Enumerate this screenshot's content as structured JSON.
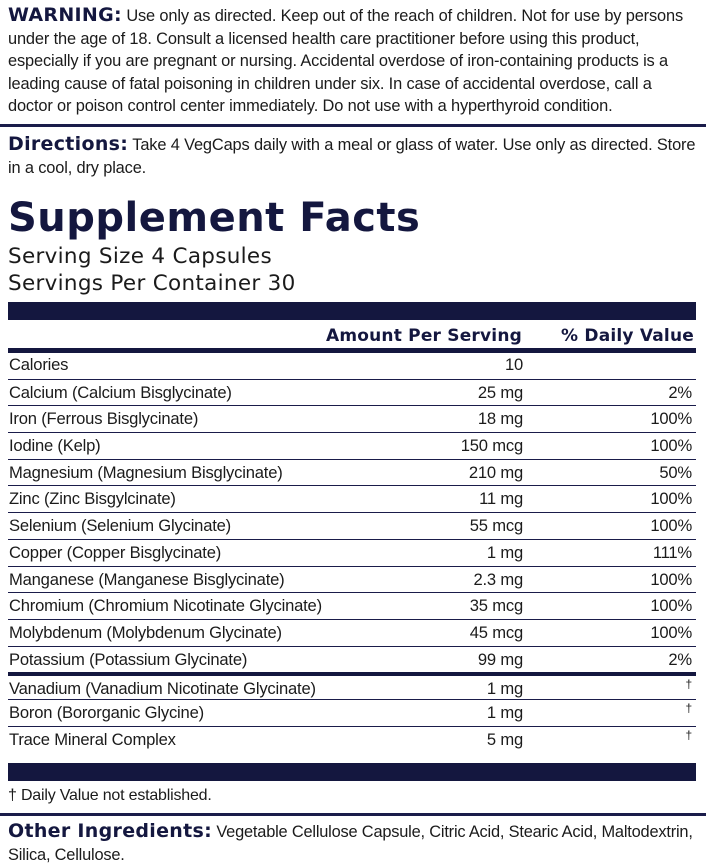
{
  "warning": {
    "label": "WARNING:",
    "text": "Use only as directed. Keep out of the reach of children. Not for use by persons under the age of 18. Consult a licensed health care practitioner before using this product, especially if you are pregnant or nursing. Accidental overdose of iron-containing products is a leading cause of fatal poisoning in children under six. In case of accidental overdose, call a doctor or poison control center immediately. Do not use with a hyperthyroid condition."
  },
  "directions": {
    "label": "Directions:",
    "text": "Take 4 VegCaps daily with a meal or glass of water. Use only as directed. Store in a cool, dry place."
  },
  "supplement_facts": {
    "title": "Supplement Facts",
    "serving_size": "Serving Size 4 Capsules",
    "servings_per_container": "Servings Per Container 30",
    "header_amount": "Amount Per Serving",
    "header_dv": "% Daily Value",
    "rows": [
      {
        "name": "Calories",
        "amount": "10",
        "dv": ""
      },
      {
        "name": "Calcium (Calcium Bisglycinate)",
        "amount": "25 mg",
        "dv": "2%"
      },
      {
        "name": "Iron (Ferrous Bisglycinate)",
        "amount": "18 mg",
        "dv": "100%"
      },
      {
        "name": "Iodine (Kelp)",
        "amount": "150 mcg",
        "dv": "100%"
      },
      {
        "name": "Magnesium (Magnesium Bisglycinate)",
        "amount": "210 mg",
        "dv": "50%"
      },
      {
        "name": "Zinc (Zinc Bisgylcinate)",
        "amount": "11 mg",
        "dv": "100%"
      },
      {
        "name": "Selenium (Selenium Glycinate)",
        "amount": "55 mcg",
        "dv": "100%"
      },
      {
        "name": "Copper (Copper Bisglycinate)",
        "amount": "1 mg",
        "dv": "111%"
      },
      {
        "name": "Manganese (Manganese Bisglycinate)",
        "amount": "2.3 mg",
        "dv": "100%"
      },
      {
        "name": "Chromium (Chromium Nicotinate Glycinate)",
        "amount": "35 mcg",
        "dv": "100%"
      },
      {
        "name": "Molybdenum (Molybdenum Glycinate)",
        "amount": "45 mcg",
        "dv": "100%"
      },
      {
        "name": "Potassium (Potassium Glycinate)",
        "amount": "99 mg",
        "dv": "2%"
      },
      {
        "name": "Vanadium (Vanadium Nicotinate Glycinate)",
        "amount": "1 mg",
        "dv": "†"
      },
      {
        "name": "Boron (Bororganic Glycine)",
        "amount": "1 mg",
        "dv": "†"
      },
      {
        "name": "Trace Mineral Complex",
        "amount": "5 mg",
        "dv": "†"
      }
    ],
    "footnote": "† Daily Value not established."
  },
  "other_ingredients": {
    "label": "Other Ingredients:",
    "text": "Vegetable Cellulose Capsule, Citric Acid, Stearic Acid, Maltodextrin, Silica, Cellulose."
  }
}
